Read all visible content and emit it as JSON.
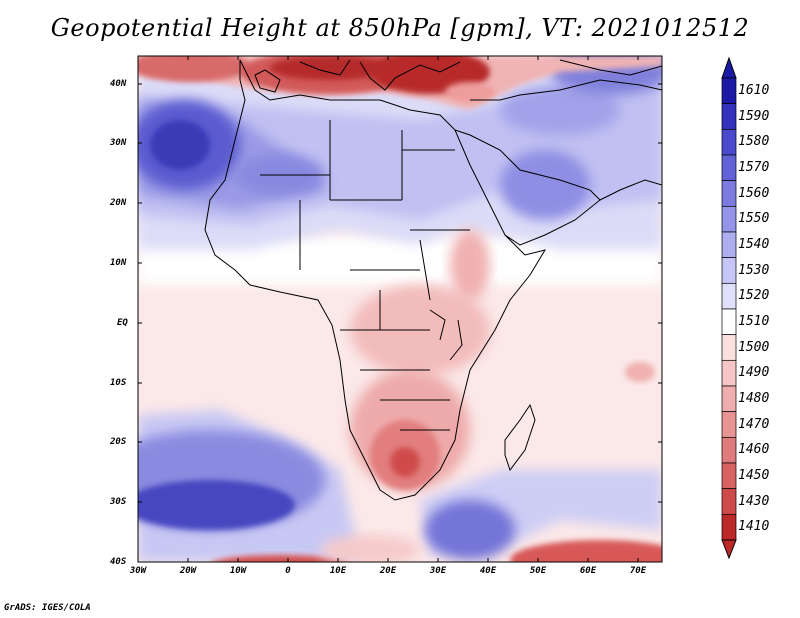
{
  "title": "Geopotential Height at 850hPa [gpm], VT: 2021012512",
  "credit": "GrADS: IGES/COLA",
  "lat_labels": [
    "40N",
    "30N",
    "20N",
    "10N",
    "EQ",
    "10S",
    "20S",
    "30S",
    "40S"
  ],
  "lon_labels": [
    "30W",
    "20W",
    "10W",
    "0",
    "10E",
    "20E",
    "30E",
    "40E",
    "50E",
    "60E",
    "70E"
  ],
  "colorbar": {
    "levels": [
      "1610",
      "1590",
      "1580",
      "1570",
      "1560",
      "1550",
      "1540",
      "1530",
      "1520",
      "1510",
      "1500",
      "1490",
      "1480",
      "1470",
      "1460",
      "1450",
      "1430",
      "1410"
    ],
    "colors": [
      "#1a1aa6",
      "#3232bd",
      "#4a4ace",
      "#6262d8",
      "#7b7be0",
      "#9494e8",
      "#adadf0",
      "#c6c6f6",
      "#e0e0fb",
      "#ffffff",
      "#fbe0e0",
      "#f6c6c6",
      "#f0adad",
      "#e89494",
      "#e07b7b",
      "#d86262",
      "#ce4a4a",
      "#bd2828"
    ]
  },
  "colors": {
    "low_extreme": "#b01e1e",
    "high_extreme": "#2a2ab0",
    "coastline": "#000000"
  }
}
